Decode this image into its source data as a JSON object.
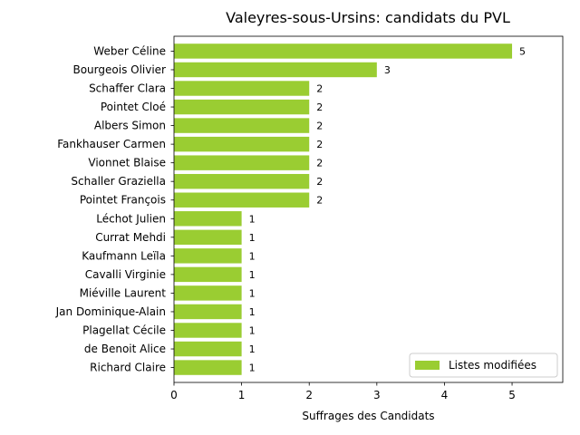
{
  "chart_data": {
    "type": "bar",
    "orientation": "horizontal",
    "title": "Valeyres-sous-Ursins: candidats du PVL",
    "xlabel": "Suffrages des Candidats",
    "ylabel": "",
    "xlim": [
      0,
      5.75
    ],
    "xticks": [
      0,
      1,
      2,
      3,
      4,
      5
    ],
    "grid": false,
    "legend_position": "lower-right",
    "categories": [
      "Weber Céline",
      "Bourgeois Olivier",
      "Schaffer Clara",
      "Pointet Cloé",
      "Albers Simon",
      "Fankhauser Carmen",
      "Vionnet Blaise",
      "Schaller Graziella",
      "Pointet François",
      "Léchot Julien",
      "Currat Mehdi",
      "Kaufmann Leïla",
      "Cavalli Virginie",
      "Miéville Laurent",
      "Jan Dominique-Alain",
      "Plagellat Cécile",
      "de Benoit Alice",
      "Richard Claire"
    ],
    "series": [
      {
        "name": "Listes modifiées",
        "color": "#9acd32",
        "values": [
          5,
          3,
          2,
          2,
          2,
          2,
          2,
          2,
          2,
          1,
          1,
          1,
          1,
          1,
          1,
          1,
          1,
          1
        ]
      }
    ]
  }
}
